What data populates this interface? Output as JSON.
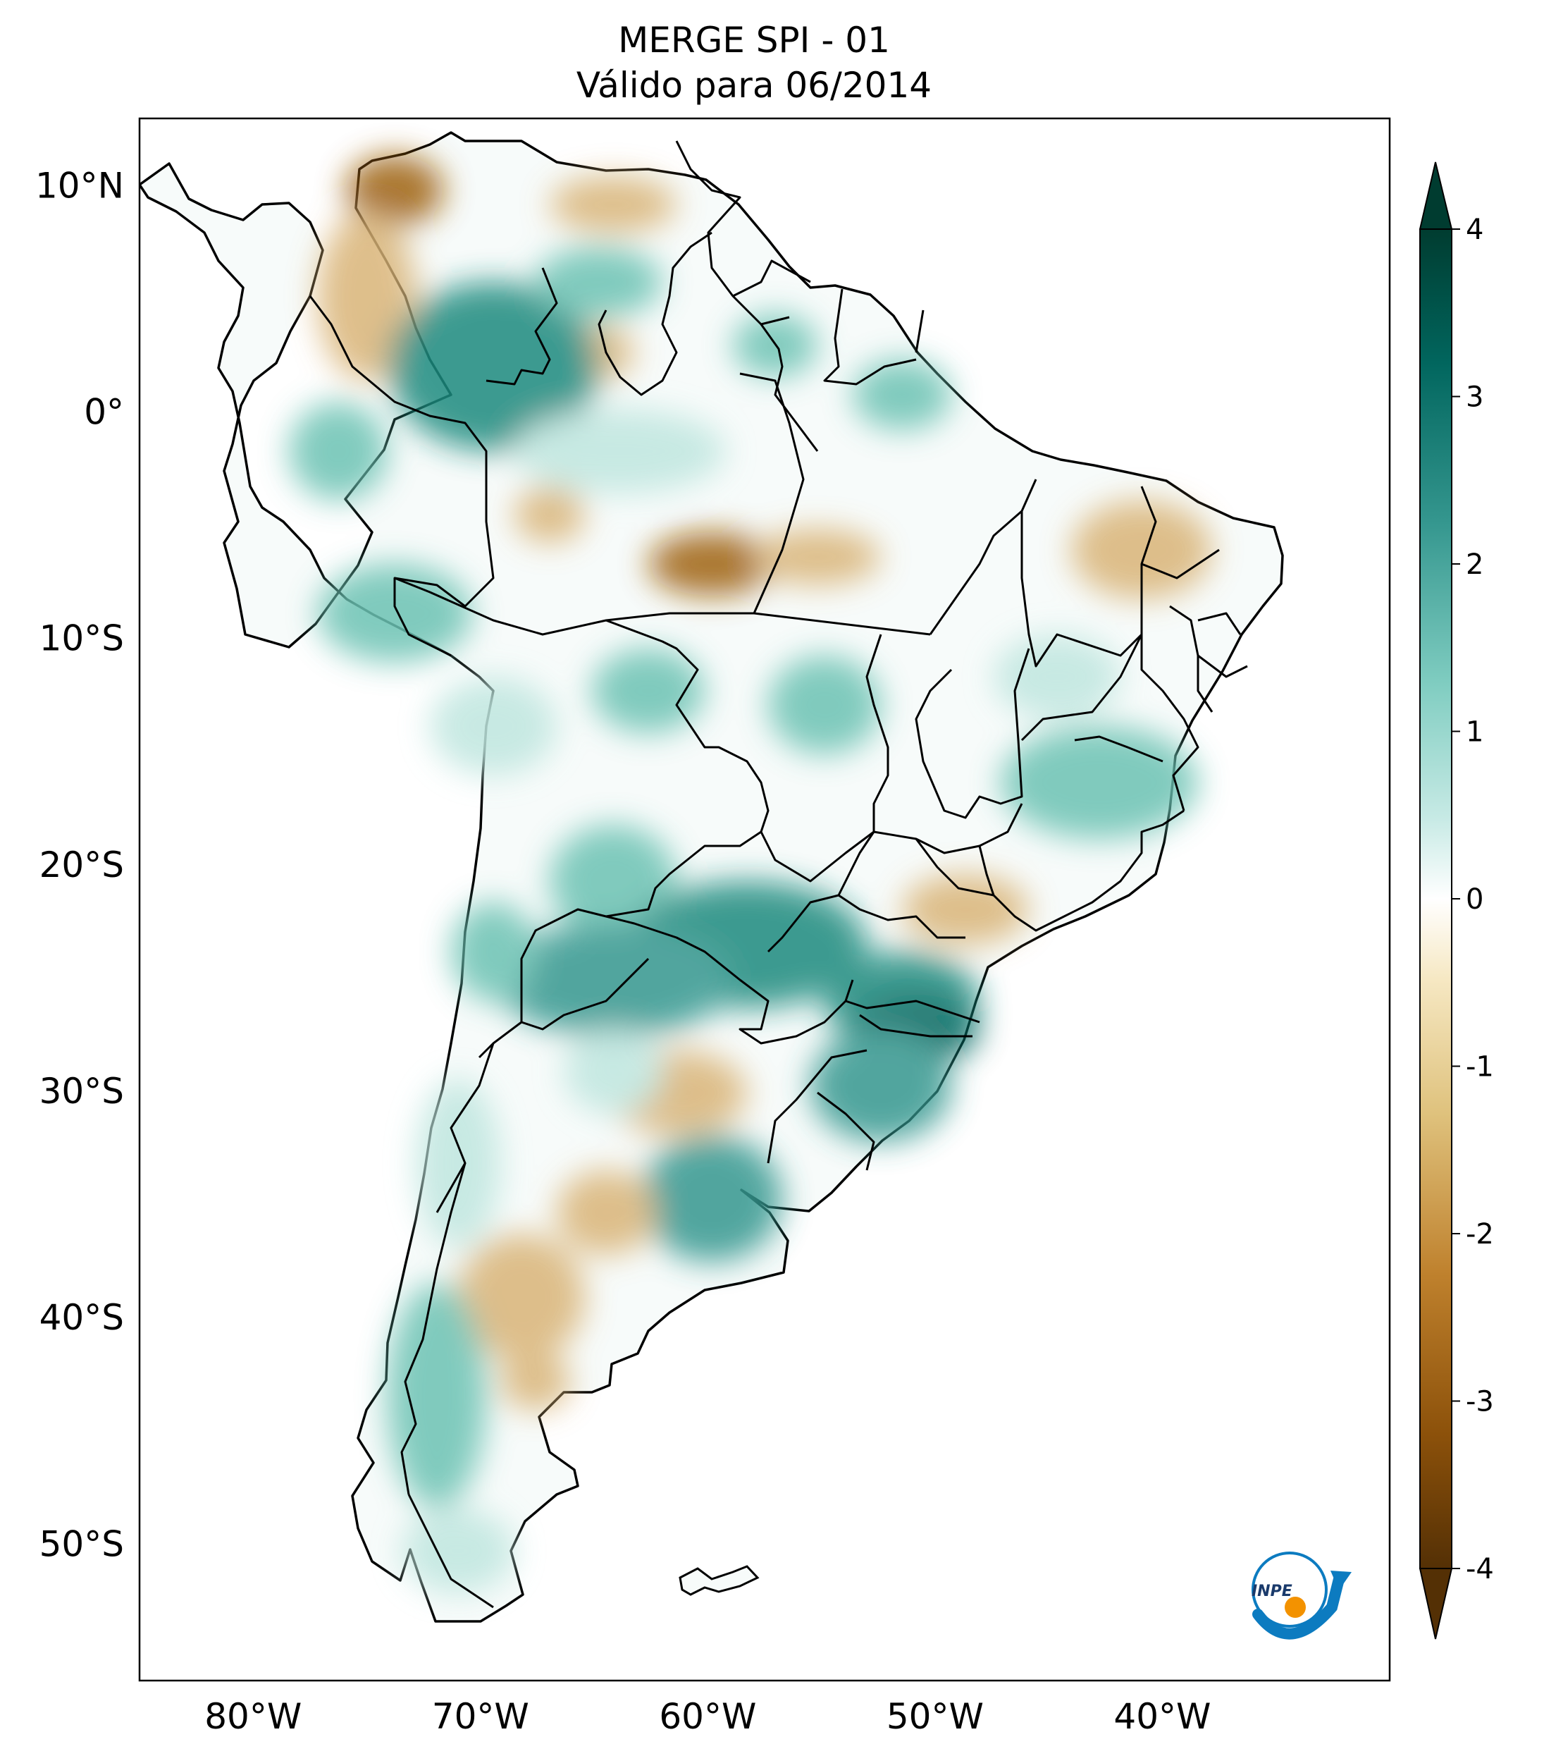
{
  "title": {
    "line1": "MERGE   SPI - 01",
    "line2": "Válido para 06/2014"
  },
  "map": {
    "projection": "PlateCarree",
    "lon_range": [
      -85,
      -30
    ],
    "lat_range": [
      -56,
      13
    ],
    "lat_ticks": [
      {
        "value": 10,
        "label": "10°N"
      },
      {
        "value": 0,
        "label": "0°"
      },
      {
        "value": -10,
        "label": "10°S"
      },
      {
        "value": -20,
        "label": "20°S"
      },
      {
        "value": -30,
        "label": "30°S"
      },
      {
        "value": -40,
        "label": "40°S"
      },
      {
        "value": -50,
        "label": "50°S"
      }
    ],
    "lon_ticks": [
      {
        "value": -80,
        "label": "80°W"
      },
      {
        "value": -70,
        "label": "70°W"
      },
      {
        "value": -60,
        "label": "60°W"
      },
      {
        "value": -50,
        "label": "50°W"
      },
      {
        "value": -40,
        "label": "40°W"
      }
    ]
  },
  "colorbar": {
    "min": -4,
    "max": 4,
    "extend": "both",
    "colormap": "BrBG",
    "ticks": [
      {
        "value": 4,
        "label": "4"
      },
      {
        "value": 3,
        "label": "3"
      },
      {
        "value": 2,
        "label": "2"
      },
      {
        "value": 1,
        "label": "1"
      },
      {
        "value": 0,
        "label": "0"
      },
      {
        "value": -1,
        "label": "-1"
      },
      {
        "value": -2,
        "label": "-2"
      },
      {
        "value": -3,
        "label": "-3"
      },
      {
        "value": -4,
        "label": "-4"
      }
    ],
    "colors": [
      "#543005",
      "#8c510a",
      "#bf812d",
      "#dfc27d",
      "#f6e8c3",
      "#ffffff",
      "#c7eae5",
      "#80cdc1",
      "#35978f",
      "#01665e",
      "#003c30"
    ]
  },
  "logo": {
    "text": "INPE",
    "arrow_color": "#0c7bc0",
    "dot_color": "#f39200"
  },
  "anomaly_colors": {
    "very_dry": "#9e6010",
    "dry": "#d9b477",
    "slightly_dry": "#efdcb4",
    "slightly_wet": "#bfe6df",
    "wet": "#6cc2b3",
    "very_wet": "#1f8a7e"
  }
}
